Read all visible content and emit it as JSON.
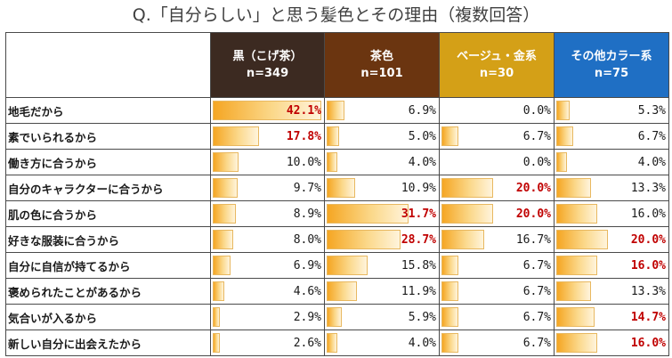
{
  "title": "Q.「自分らしい」と思う髪色とその理由（複数回答）",
  "columns": [
    {
      "name": "黒（こげ茶）",
      "n": "n=349",
      "color": "#3c2a21"
    },
    {
      "name": "茶色",
      "n": "n=101",
      "color": "#6b3510"
    },
    {
      "name": "ベージュ・金系",
      "n": "n=30",
      "color": "#d4a017"
    },
    {
      "name": "その他カラー系",
      "n": "n=75",
      "color": "#1f6fc4"
    }
  ],
  "chart_data": {
    "type": "table",
    "title": "Q.「自分らしい」と思う髪色とその理由（複数回答）",
    "categories": [
      "黒（こげ茶）n=349",
      "茶色 n=101",
      "ベージュ・金系 n=30",
      "その他カラー系 n=75"
    ],
    "rows": [
      {
        "label": "地毛だから",
        "values": [
          42.1,
          6.9,
          0.0,
          5.3
        ],
        "display": [
          "42.1%",
          "6.9%",
          "0.0%",
          "5.3%"
        ],
        "highlight": [
          true,
          false,
          false,
          false
        ]
      },
      {
        "label": "素でいられるから",
        "values": [
          17.8,
          5.0,
          6.7,
          6.7
        ],
        "display": [
          "17.8%",
          "5.0%",
          "6.7%",
          "6.7%"
        ],
        "highlight": [
          true,
          false,
          false,
          false
        ]
      },
      {
        "label": "働き方に合うから",
        "values": [
          10.0,
          4.0,
          0.0,
          4.0
        ],
        "display": [
          "10.0%",
          "4.0%",
          "0.0%",
          "4.0%"
        ],
        "highlight": [
          false,
          false,
          false,
          false
        ]
      },
      {
        "label": "自分のキャラクターに合うから",
        "values": [
          9.7,
          10.9,
          20.0,
          13.3
        ],
        "display": [
          "9.7%",
          "10.9%",
          "20.0%",
          "13.3%"
        ],
        "highlight": [
          false,
          false,
          true,
          false
        ]
      },
      {
        "label": "肌の色に合うから",
        "values": [
          8.9,
          31.7,
          20.0,
          16.0
        ],
        "display": [
          "8.9%",
          "31.7%",
          "20.0%",
          "16.0%"
        ],
        "highlight": [
          false,
          true,
          true,
          false
        ]
      },
      {
        "label": "好きな服装に合うから",
        "values": [
          8.0,
          28.7,
          16.7,
          20.0
        ],
        "display": [
          "8.0%",
          "28.7%",
          "16.7%",
          "20.0%"
        ],
        "highlight": [
          false,
          true,
          false,
          true
        ]
      },
      {
        "label": "自分に自信が持てるから",
        "values": [
          6.9,
          15.8,
          6.7,
          16.0
        ],
        "display": [
          "6.9%",
          "15.8%",
          "6.7%",
          "16.0%"
        ],
        "highlight": [
          false,
          false,
          false,
          true
        ]
      },
      {
        "label": "褒められたことがあるから",
        "values": [
          4.6,
          11.9,
          6.7,
          13.3
        ],
        "display": [
          "4.6%",
          "11.9%",
          "6.7%",
          "13.3%"
        ],
        "highlight": [
          false,
          false,
          false,
          false
        ]
      },
      {
        "label": "気合いが入るから",
        "values": [
          2.9,
          5.9,
          6.7,
          14.7
        ],
        "display": [
          "2.9%",
          "5.9%",
          "6.7%",
          "14.7%"
        ],
        "highlight": [
          false,
          false,
          false,
          true
        ]
      },
      {
        "label": "新しい自分に出会えたから",
        "values": [
          2.6,
          4.0,
          6.7,
          16.0
        ],
        "display": [
          "2.6%",
          "4.0%",
          "6.7%",
          "16.0%"
        ],
        "highlight": [
          false,
          false,
          false,
          true
        ]
      }
    ],
    "bar_max": 42.1
  }
}
